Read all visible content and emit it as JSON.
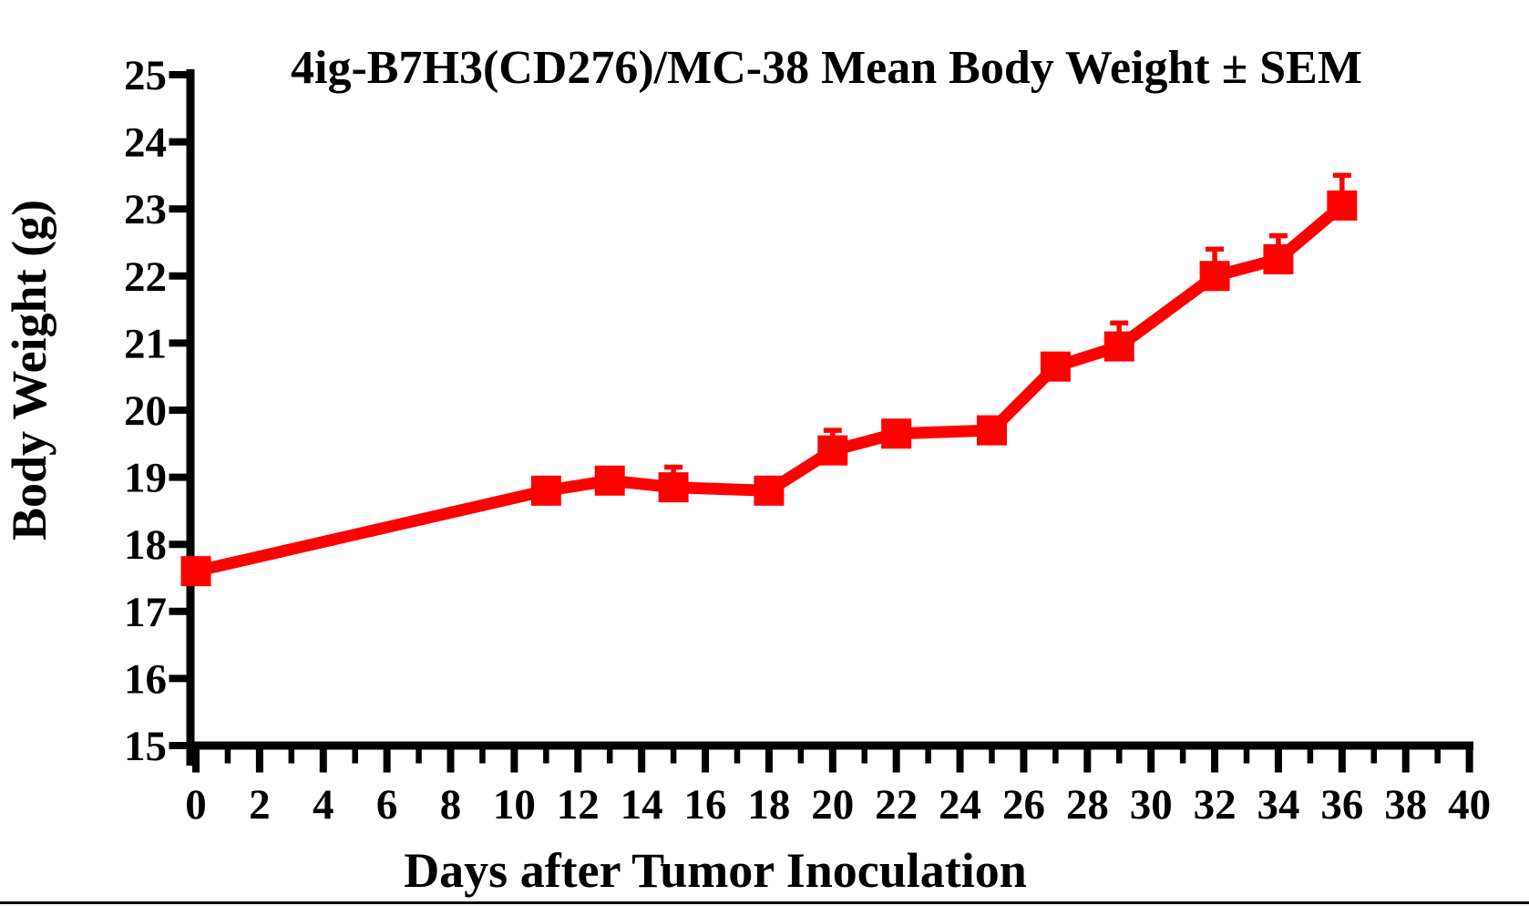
{
  "figure": {
    "title": "4ig-B7H3(CD276)/MC-38 Mean Body Weight ± SEM",
    "x_axis_title": "Days after Tumor Inoculation",
    "y_axis_title": "Body Weight (g)"
  },
  "colors": {
    "series": "#ff0000",
    "axis": "#000000",
    "background": "#ffffff"
  },
  "chart_data": {
    "type": "line",
    "title": "4ig-B7H3(CD276)/MC-38 Mean Body Weight ± SEM",
    "xlabel": "Days after Tumor Inoculation",
    "ylabel": "Body Weight (g)",
    "xlim": [
      0,
      40
    ],
    "ylim": [
      15,
      25
    ],
    "grid": false,
    "legend_position": "none",
    "error_bar_style": "upper SEM cap only",
    "marker": "square",
    "x_major_ticks": [
      0,
      2,
      4,
      6,
      8,
      10,
      12,
      14,
      16,
      18,
      20,
      22,
      24,
      26,
      28,
      30,
      32,
      34,
      36,
      38,
      40
    ],
    "x_minor_ticks": [
      1,
      3,
      5,
      7,
      9,
      11,
      13,
      15,
      17,
      19,
      21,
      23,
      25,
      27,
      29,
      31,
      33,
      35,
      37,
      39
    ],
    "y_ticks": [
      15,
      16,
      17,
      18,
      19,
      20,
      21,
      22,
      23,
      24,
      25
    ],
    "series": [
      {
        "name": "4ig-B7H3(CD276)/MC-38",
        "x": [
          0,
          11,
          13,
          15,
          18,
          20,
          22,
          25,
          27,
          29,
          32,
          34,
          36
        ],
        "y": [
          17.6,
          18.8,
          18.95,
          18.85,
          18.8,
          19.4,
          19.65,
          19.7,
          20.65,
          20.95,
          22.0,
          22.25,
          23.05
        ],
        "sem_upper": [
          0,
          0,
          0,
          0.3,
          0,
          0.3,
          0,
          0,
          0,
          0.35,
          0.4,
          0.35,
          0.45
        ],
        "color": "#ff0000"
      }
    ]
  }
}
